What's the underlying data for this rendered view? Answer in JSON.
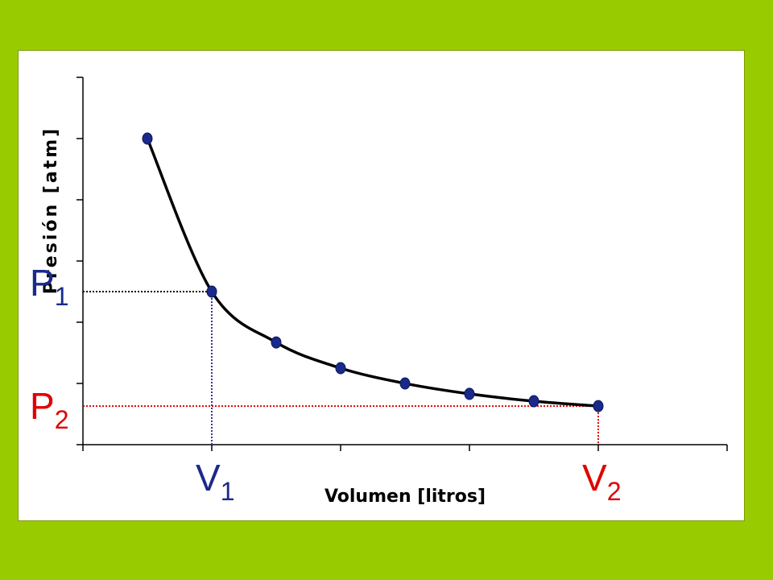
{
  "chart_data": {
    "type": "line",
    "title": "",
    "xlabel": "Volumen [litros]",
    "ylabel": "Presión [atm]",
    "xlim": [
      0,
      10
    ],
    "ylim": [
      0,
      6
    ],
    "x_ticks": [
      0,
      2,
      4,
      6,
      8,
      10
    ],
    "y_ticks": [
      0,
      1,
      2,
      3,
      4,
      5,
      6
    ],
    "tick_labels_shown": false,
    "grid": false,
    "legend": "none",
    "series": [
      {
        "points_x": [
          1,
          2,
          3,
          4,
          5,
          6,
          7,
          8
        ],
        "points_y": [
          5.0,
          2.5,
          1.67,
          1.25,
          1.0,
          0.83,
          0.71,
          0.63
        ],
        "marker_color": "#1a2a8a",
        "line_color": "#000000"
      }
    ],
    "annotations": {
      "p1": {
        "label": "P",
        "sub": "1",
        "y": 2.5,
        "color": "#1a2a8a",
        "guide_color": "#000000"
      },
      "p2": {
        "label": "P",
        "sub": "2",
        "y": 0.63,
        "color": "#e00000",
        "guide_color": "#e00000"
      },
      "v1": {
        "label": "V",
        "sub": "1",
        "x": 2,
        "color": "#1a2a8a",
        "guide_color": "#3333aa"
      },
      "v2": {
        "label": "V",
        "sub": "2",
        "x": 8,
        "color": "#e00000",
        "guide_color": "#e00000"
      }
    }
  }
}
